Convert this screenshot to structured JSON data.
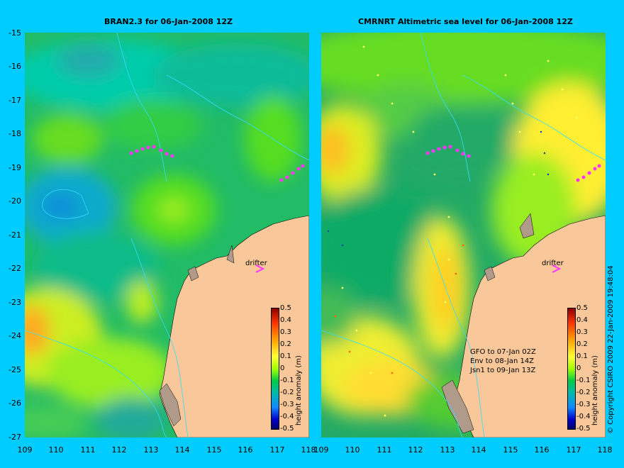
{
  "left_panel": {
    "title": "BRAN2.3 for 06-Jan-2008 12Z"
  },
  "right_panel": {
    "title": "CMRNRT Altimetric sea level  for 06-Jan-2008 12Z",
    "legend_lines": [
      "GFO to 07-Jan 02Z",
      "Env to 08-Jan 14Z",
      "Jsn1 to 09-Jan 13Z"
    ]
  },
  "y_axis_labels": [
    "-15",
    "-16",
    "-17",
    "-18",
    "-19",
    "-20",
    "-21",
    "-22",
    "-23",
    "-24",
    "-25",
    "-26",
    "-27"
  ],
  "left_x_labels": [
    "109",
    "110",
    "111",
    "112",
    "113",
    "114",
    "115",
    "116",
    "117",
    "118"
  ],
  "right_x_labels": [
    "109",
    "110",
    "111",
    "112",
    "113",
    "114",
    "115",
    "116",
    "117",
    "118"
  ],
  "colorbar": {
    "title": "height anomaly (m)",
    "ticks": [
      "0.5",
      "0.4",
      "0.3",
      "0.2",
      "0.1",
      "0",
      "-0.1",
      "-0.2",
      "-0.3",
      "-0.4",
      "-0.5"
    ]
  },
  "drifter_label": "drifter",
  "copyright": "© Copyright CSIRO 2009   22-Jan-2009 19:48:04",
  "colors": {
    "background": "#00ccff",
    "land": "#f8c89a",
    "drifter": "#ff33ff",
    "coast_shadow": "#b09a8a"
  }
}
